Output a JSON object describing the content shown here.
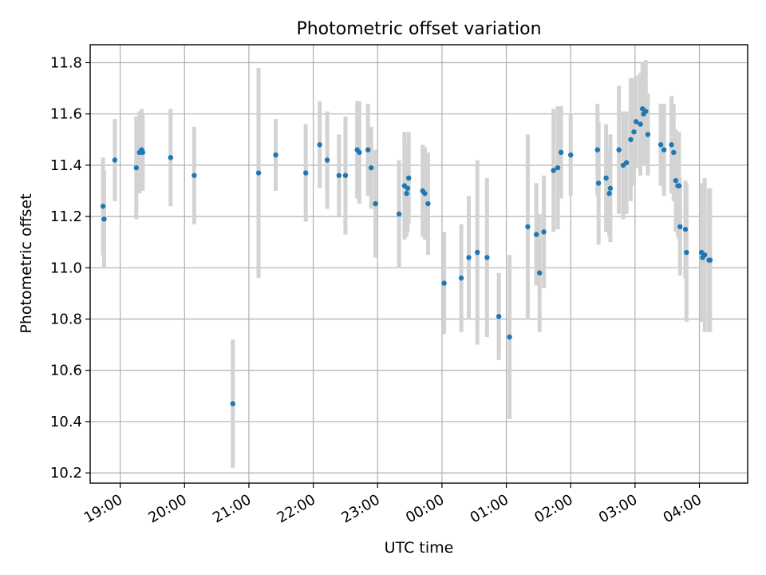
{
  "chart_data": {
    "type": "scatter",
    "title": "Photometric offset variation",
    "xlabel": "UTC time",
    "ylabel": "Photometric offset",
    "x_axis_kind": "time",
    "xlim": [
      "18:32",
      "04:45"
    ],
    "ylim": [
      10.16,
      11.87
    ],
    "x_tick_labels": [
      "19:00",
      "20:00",
      "21:00",
      "22:00",
      "23:00",
      "00:00",
      "01:00",
      "02:00",
      "03:00",
      "04:00"
    ],
    "y_tick_labels": [
      "10.2",
      "10.4",
      "10.6",
      "10.8",
      "11.0",
      "11.2",
      "11.4",
      "11.6",
      "11.8"
    ],
    "grid": true,
    "legend": "none",
    "colors": {
      "marker": "#1f77b4",
      "errorbar": "#d3d3d3",
      "grid": "#b0b0b0",
      "axes": "#000000"
    },
    "series": [
      {
        "x": [
          "18:44",
          "18:45",
          "18:55",
          "19:15",
          "19:18",
          "19:20",
          "19:21",
          "19:47",
          "20:09",
          "20:45",
          "21:09",
          "21:25",
          "21:53",
          "22:06",
          "22:13",
          "22:24",
          "22:30",
          "22:41",
          "22:43",
          "22:51",
          "22:54",
          "22:58",
          "23:20",
          "23:25",
          "23:27",
          "23:28",
          "23:29",
          "23:42",
          "23:44",
          "23:47",
          "00:02",
          "00:18",
          "00:25",
          "00:33",
          "00:42",
          "00:53",
          "01:03",
          "01:20",
          "01:28",
          "01:31",
          "01:35",
          "01:44",
          "01:48",
          "01:51",
          "02:00",
          "02:25",
          "02:26",
          "02:33",
          "02:36",
          "02:37",
          "02:45",
          "02:49",
          "02:52",
          "02:56",
          "02:59",
          "03:01",
          "03:05",
          "03:07",
          "03:08",
          "03:10",
          "03:12",
          "03:24",
          "03:27",
          "03:34",
          "03:36",
          "03:38",
          "03:40",
          "03:41",
          "03:42",
          "03:47",
          "03:48",
          "04:02",
          "04:03",
          "04:05",
          "04:09",
          "04:10"
        ],
        "y": [
          11.24,
          11.19,
          11.42,
          11.39,
          11.45,
          11.46,
          11.45,
          11.43,
          11.36,
          10.47,
          11.37,
          11.44,
          11.37,
          11.48,
          11.42,
          11.36,
          11.36,
          11.46,
          11.45,
          11.46,
          11.39,
          11.25,
          11.21,
          11.32,
          11.29,
          11.31,
          11.35,
          11.3,
          11.29,
          11.25,
          10.94,
          10.96,
          11.04,
          11.06,
          11.04,
          10.81,
          10.73,
          11.16,
          11.13,
          10.98,
          11.14,
          11.38,
          11.39,
          11.45,
          11.44,
          11.46,
          11.33,
          11.35,
          11.29,
          11.31,
          11.46,
          11.4,
          11.41,
          11.5,
          11.53,
          11.57,
          11.56,
          11.62,
          11.6,
          11.61,
          11.52,
          11.48,
          11.46,
          11.48,
          11.45,
          11.34,
          11.32,
          11.32,
          11.16,
          11.15,
          11.06,
          11.06,
          11.04,
          11.05,
          11.03,
          11.03
        ],
        "yerr": [
          0.19,
          0.19,
          0.16,
          0.2,
          0.16,
          0.16,
          0.15,
          0.19,
          0.19,
          0.25,
          0.41,
          0.14,
          0.19,
          0.17,
          0.19,
          0.16,
          0.23,
          0.19,
          0.2,
          0.18,
          0.16,
          0.21,
          0.21,
          0.21,
          0.17,
          0.17,
          0.18,
          0.18,
          0.18,
          0.2,
          0.2,
          0.21,
          0.24,
          0.36,
          0.31,
          0.17,
          0.32,
          0.36,
          0.2,
          0.23,
          0.22,
          0.24,
          0.24,
          0.18,
          0.16,
          0.18,
          0.24,
          0.21,
          0.17,
          0.21,
          0.25,
          0.21,
          0.2,
          0.24,
          0.21,
          0.18,
          0.2,
          0.18,
          0.2,
          0.2,
          0.16,
          0.16,
          0.18,
          0.19,
          0.19,
          0.2,
          0.2,
          0.21,
          0.19,
          0.19,
          0.27,
          0.27,
          0.25,
          0.3,
          0.28,
          0.28
        ]
      }
    ]
  }
}
